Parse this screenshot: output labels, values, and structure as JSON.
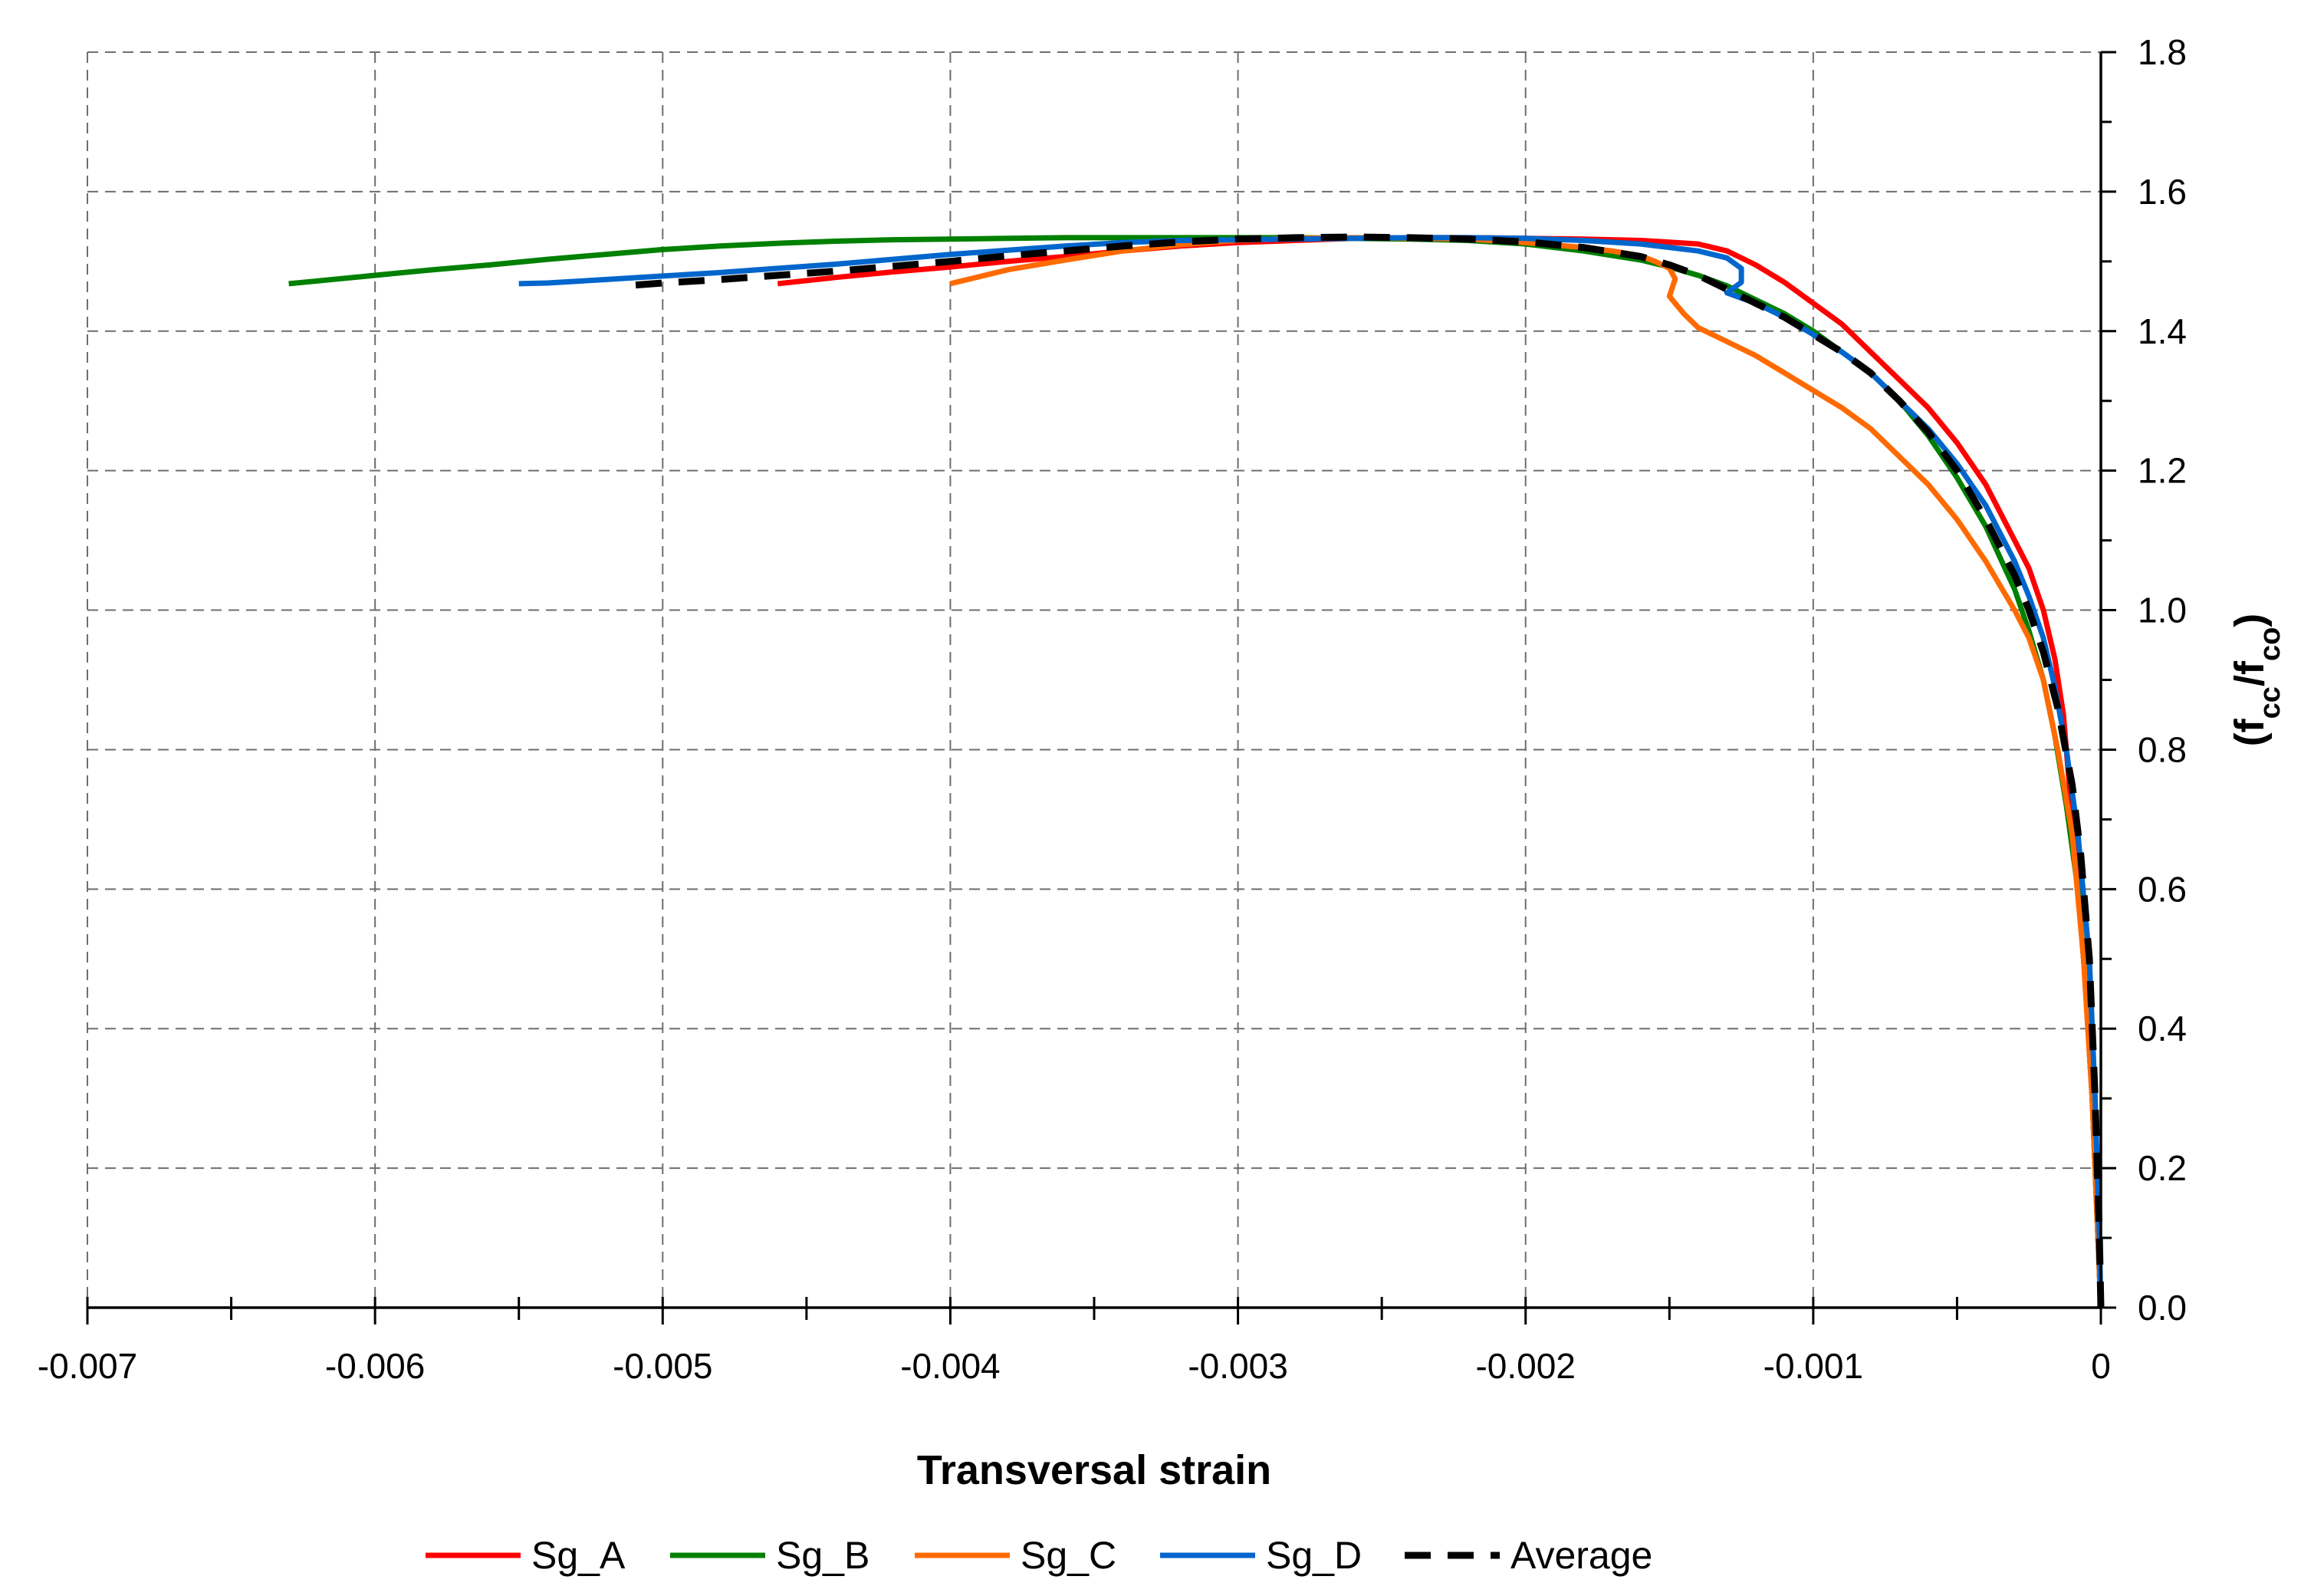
{
  "chart_data": {
    "type": "line",
    "title": "",
    "xlabel": "Transversal strain",
    "ylabel_main": "(f",
    "ylabel_sub1": "cc",
    "ylabel_mid": "/f",
    "ylabel_sub2": "co",
    "ylabel_end": ")",
    "xlim": [
      -0.007,
      0
    ],
    "ylim": [
      0,
      1.8
    ],
    "x_ticks": [
      -0.007,
      -0.006,
      -0.005,
      -0.004,
      -0.003,
      -0.002,
      -0.001,
      0
    ],
    "x_tick_labels": [
      "-0.007",
      "-0.006",
      "-0.005",
      "-0.004",
      "-0.003",
      "-0.002",
      "-0.001",
      "0"
    ],
    "y_ticks": [
      0,
      0.2,
      0.4,
      0.6,
      0.8,
      1.0,
      1.2,
      1.4,
      1.6,
      1.8
    ],
    "y_tick_labels": [
      "0.0",
      "0.2",
      "0.4",
      "0.6",
      "0.8",
      "1.0",
      "1.2",
      "1.4",
      "1.6",
      "1.8"
    ],
    "grid": true,
    "legend_position": "bottom",
    "series": [
      {
        "name": "Sg_A",
        "color": "#ff0000",
        "dashed": false,
        "x": [
          0,
          -1e-05,
          -3e-05,
          -6e-05,
          -0.0001,
          -0.00013,
          -0.00016,
          -0.0002,
          -0.00025,
          -0.0003,
          -0.0004,
          -0.0005,
          -0.0006,
          -0.0007,
          -0.0008,
          -0.0009,
          -0.001,
          -0.0011,
          -0.0012,
          -0.0013,
          -0.0014,
          -0.0016,
          -0.0018,
          -0.002,
          -0.0022,
          -0.0024,
          -0.0026,
          -0.0028,
          -0.003,
          -0.0032,
          -0.0034,
          -0.0036,
          -0.0038,
          -0.004,
          -0.0042,
          -0.0044,
          -0.0046
        ],
        "y": [
          0,
          0.1,
          0.3,
          0.5,
          0.7,
          0.85,
          0.93,
          1.0,
          1.06,
          1.1,
          1.18,
          1.24,
          1.29,
          1.33,
          1.37,
          1.41,
          1.44,
          1.47,
          1.495,
          1.515,
          1.525,
          1.53,
          1.532,
          1.533,
          1.534,
          1.534,
          1.533,
          1.53,
          1.527,
          1.522,
          1.515,
          1.507,
          1.5,
          1.492,
          1.485,
          1.477,
          1.468
        ]
      },
      {
        "name": "Sg_B",
        "color": "#008000",
        "dashed": false,
        "x": [
          0,
          -1e-05,
          -3e-05,
          -5e-05,
          -8e-05,
          -0.00012,
          -0.00016,
          -0.0002,
          -0.00025,
          -0.0003,
          -0.0004,
          -0.0005,
          -0.0006,
          -0.0007,
          -0.0008,
          -0.0009,
          -0.001,
          -0.0011,
          -0.0012,
          -0.0013,
          -0.0014,
          -0.0015,
          -0.0016,
          -0.0018,
          -0.002,
          -0.0022,
          -0.0024,
          -0.0026,
          -0.0028,
          -0.003,
          -0.0032,
          -0.0034,
          -0.0036,
          -0.0038,
          -0.004,
          -0.0042,
          -0.0044,
          -0.0046,
          -0.0048,
          -0.005,
          -0.0052,
          -0.0054,
          -0.0056,
          -0.0058,
          -0.006,
          -0.0062,
          -0.0063
        ],
        "y": [
          0,
          0.1,
          0.3,
          0.45,
          0.6,
          0.72,
          0.82,
          0.9,
          0.97,
          1.03,
          1.12,
          1.19,
          1.25,
          1.3,
          1.34,
          1.37,
          1.4,
          1.425,
          1.445,
          1.465,
          1.48,
          1.492,
          1.502,
          1.515,
          1.525,
          1.53,
          1.532,
          1.533,
          1.534,
          1.534,
          1.534,
          1.534,
          1.534,
          1.533,
          1.532,
          1.531,
          1.529,
          1.526,
          1.522,
          1.517,
          1.51,
          1.503,
          1.495,
          1.488,
          1.48,
          1.472,
          1.468
        ]
      },
      {
        "name": "Sg_C",
        "color": "#ff6a00",
        "dashed": false,
        "x": [
          0,
          -1e-05,
          -3e-05,
          -6e-05,
          -0.0001,
          -0.00015,
          -0.0002,
          -0.00025,
          -0.0003,
          -0.0004,
          -0.0005,
          -0.0006,
          -0.0007,
          -0.0008,
          -0.0009,
          -0.001,
          -0.0011,
          -0.0012,
          -0.0013,
          -0.0014,
          -0.00145,
          -0.0015,
          -0.00148,
          -0.0015,
          -0.00155,
          -0.0016,
          -0.0017,
          -0.0018,
          -0.002,
          -0.0022,
          -0.0024,
          -0.0026,
          -0.0028,
          -0.003,
          -0.0032,
          -0.0034,
          -0.0036,
          -0.0038,
          -0.004
        ],
        "y": [
          0,
          0.1,
          0.3,
          0.5,
          0.68,
          0.8,
          0.9,
          0.96,
          1.0,
          1.07,
          1.13,
          1.18,
          1.22,
          1.26,
          1.29,
          1.315,
          1.34,
          1.365,
          1.385,
          1.405,
          1.425,
          1.45,
          1.475,
          1.49,
          1.5,
          1.508,
          1.515,
          1.52,
          1.527,
          1.532,
          1.533,
          1.534,
          1.533,
          1.53,
          1.524,
          1.515,
          1.502,
          1.488,
          1.468
        ]
      },
      {
        "name": "Sg_D",
        "color": "#0066cc",
        "dashed": false,
        "x": [
          0,
          -5e-06,
          -2e-05,
          -4e-05,
          -8e-05,
          -0.00012,
          -0.00016,
          -0.0002,
          -0.00025,
          -0.0003,
          -0.0004,
          -0.0005,
          -0.0006,
          -0.0007,
          -0.0008,
          -0.0009,
          -0.001,
          -0.0011,
          -0.0012,
          -0.0013,
          -0.00125,
          -0.00125,
          -0.0013,
          -0.0014,
          -0.0016,
          -0.0018,
          -0.002,
          -0.0022,
          -0.0024,
          -0.0026,
          -0.0028,
          -0.003,
          -0.0032,
          -0.0034,
          -0.0036,
          -0.0038,
          -0.004,
          -0.0042,
          -0.0044,
          -0.0046,
          -0.0048,
          -0.005,
          -0.0052,
          -0.0054,
          -0.0055
        ],
        "y": [
          0,
          0.1,
          0.3,
          0.5,
          0.68,
          0.8,
          0.89,
          0.96,
          1.02,
          1.07,
          1.15,
          1.21,
          1.26,
          1.3,
          1.34,
          1.37,
          1.395,
          1.42,
          1.44,
          1.455,
          1.47,
          1.49,
          1.505,
          1.515,
          1.525,
          1.53,
          1.533,
          1.534,
          1.534,
          1.533,
          1.532,
          1.531,
          1.53,
          1.527,
          1.522,
          1.516,
          1.51,
          1.503,
          1.496,
          1.49,
          1.484,
          1.479,
          1.474,
          1.469,
          1.468
        ]
      },
      {
        "name": "Average",
        "color": "#000000",
        "dashed": true,
        "x": [
          0,
          -5e-06,
          -2e-05,
          -4e-05,
          -7e-05,
          -0.0001,
          -0.00015,
          -0.0002,
          -0.00025,
          -0.0003,
          -0.0004,
          -0.0005,
          -0.0006,
          -0.0007,
          -0.0008,
          -0.0009,
          -0.001,
          -0.0011,
          -0.0012,
          -0.0013,
          -0.0014,
          -0.0015,
          -0.0016,
          -0.0018,
          -0.002,
          -0.0022,
          -0.0024,
          -0.0026,
          -0.0028,
          -0.003,
          -0.0032,
          -0.0034,
          -0.0036,
          -0.0038,
          -0.004,
          -0.0042,
          -0.0044,
          -0.0046,
          -0.0048,
          -0.005,
          -0.0051
        ],
        "y": [
          0,
          0.1,
          0.3,
          0.5,
          0.65,
          0.75,
          0.86,
          0.94,
          1.0,
          1.05,
          1.13,
          1.2,
          1.255,
          1.3,
          1.34,
          1.37,
          1.395,
          1.42,
          1.44,
          1.46,
          1.48,
          1.495,
          1.507,
          1.52,
          1.528,
          1.532,
          1.534,
          1.535,
          1.534,
          1.532,
          1.528,
          1.522,
          1.515,
          1.508,
          1.5,
          1.493,
          1.486,
          1.48,
          1.474,
          1.469,
          1.466
        ]
      }
    ]
  }
}
